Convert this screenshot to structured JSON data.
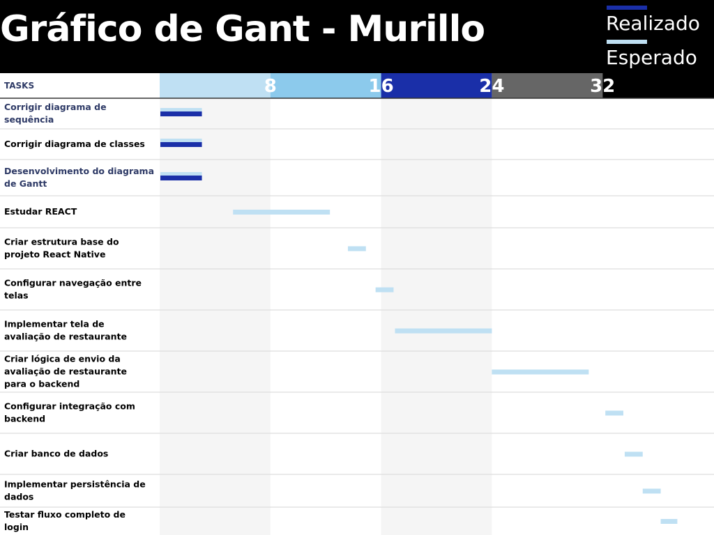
{
  "header": {
    "title": "Gráfico de Gant - Murillo",
    "legend": [
      {
        "label": "Realizado",
        "color": "#1a2fa8"
      },
      {
        "label": "Esperado",
        "color": "#bfe0f3"
      }
    ]
  },
  "chart_data": {
    "type": "gantt",
    "title": "Gráfico de Gant - Murillo",
    "tasks_header": "TASKS",
    "xlim": [
      0,
      40
    ],
    "ticks": [
      "8",
      "16",
      "24",
      "32"
    ],
    "tick_values": [
      8,
      16,
      24,
      32
    ],
    "band_colors": [
      "#bfe0f3",
      "#8ccaec",
      "#1a2fa8",
      "#666666"
    ],
    "colors": {
      "realizado": "#1a2fa8",
      "esperado": "#bfe0f3",
      "task_text": "#000000",
      "task_text_alt": "#2e3a66"
    },
    "tasks": [
      {
        "name": "Corrigir diagrama de sequência",
        "esperado": [
          0,
          3
        ],
        "realizado": [
          0,
          3
        ],
        "alt": true
      },
      {
        "name": "Corrigir diagrama de classes",
        "esperado": [
          0,
          3
        ],
        "realizado": [
          0,
          3
        ],
        "alt": false
      },
      {
        "name": "Desenvolvimento do diagrama de Gantt",
        "esperado": [
          0,
          3
        ],
        "realizado": [
          0,
          3
        ],
        "alt": true
      },
      {
        "name": "Estudar REACT",
        "esperado": [
          5.3,
          12.3
        ],
        "alt": false
      },
      {
        "name": "Criar estrutura base do projeto React Native",
        "esperado": [
          13.6,
          14.9
        ],
        "alt": false
      },
      {
        "name": "Configurar navegação entre telas",
        "esperado": [
          15.6,
          16.9
        ],
        "alt": false
      },
      {
        "name": "Implementar tela de avaliação de restaurante",
        "esperado": [
          17,
          24
        ],
        "alt": false
      },
      {
        "name": "Criar lógica de envio da avaliação de restaurante para o backend",
        "esperado": [
          24,
          31
        ],
        "alt": false
      },
      {
        "name": "Configurar integração com backend",
        "esperado": [
          32.2,
          33.5
        ],
        "alt": false
      },
      {
        "name": "Criar banco de dados",
        "esperado": [
          33.6,
          34.9
        ],
        "alt": false
      },
      {
        "name": "Implementar persistência de dados",
        "esperado": [
          34.9,
          36.2
        ],
        "alt": false
      },
      {
        "name": "Testar fluxo completo de login",
        "esperado": [
          36.2,
          37.4
        ],
        "alt": false
      }
    ]
  }
}
